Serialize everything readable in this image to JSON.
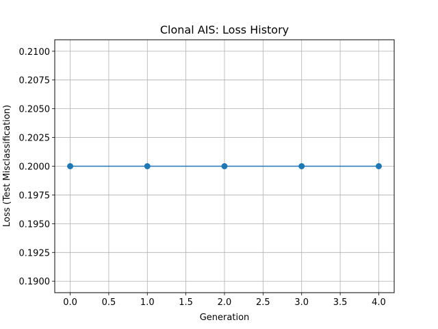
{
  "chart_data": {
    "type": "line",
    "title": "Clonal AIS: Loss History",
    "xlabel": "Generation",
    "ylabel": "Loss (Test Misclassification)",
    "xlim": [
      -0.2,
      4.2
    ],
    "ylim": [
      0.189,
      0.211
    ],
    "xticks": [
      0.0,
      0.5,
      1.0,
      1.5,
      2.0,
      2.5,
      3.0,
      3.5,
      4.0
    ],
    "xtick_labels": [
      "0.0",
      "0.5",
      "1.0",
      "1.5",
      "2.0",
      "2.5",
      "3.0",
      "3.5",
      "4.0"
    ],
    "yticks": [
      0.19,
      0.1925,
      0.195,
      0.1975,
      0.2,
      0.2025,
      0.205,
      0.2075,
      0.21
    ],
    "ytick_labels": [
      "0.1900",
      "0.1925",
      "0.1950",
      "0.1975",
      "0.2000",
      "0.2025",
      "0.2050",
      "0.2075",
      "0.2100"
    ],
    "grid": true,
    "series": [
      {
        "x": [
          0,
          1,
          2,
          3,
          4
        ],
        "values": [
          0.2,
          0.2,
          0.2,
          0.2,
          0.2
        ],
        "color": "#1f77b4",
        "marker": "circle"
      }
    ]
  }
}
